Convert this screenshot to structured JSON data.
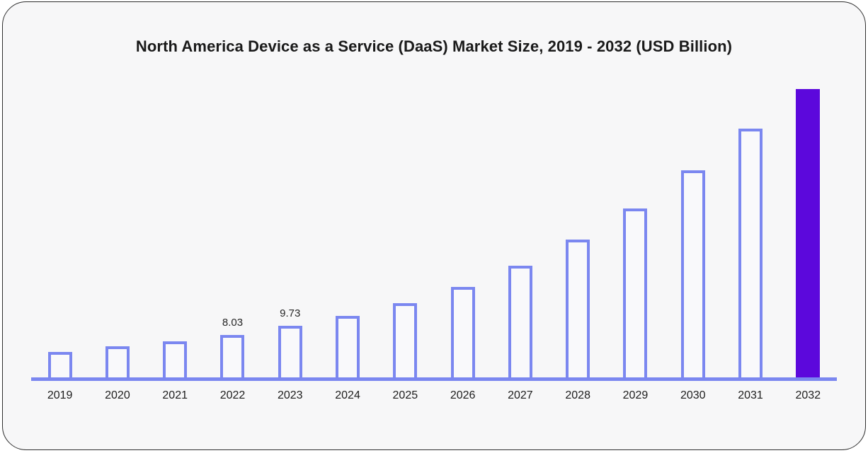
{
  "header": {
    "title": "North America Device as a Service (DaaS) Market Size, 2019 - 2032 (USD Billion)"
  },
  "colors": {
    "card_bg": "#f7f7f8",
    "card_border": "#2e2e2e",
    "bar_outline": "#7b87f0",
    "bar_fill": "#f9f9fb",
    "highlight_bar": "#5c08dc",
    "axis": "#7b87f0"
  },
  "chart_data": {
    "type": "bar",
    "title": "North America Device as a Service (DaaS) Market Size, 2019 - 2032 (USD Billion)",
    "xlabel": "",
    "ylabel": "",
    "ylim": [
      0,
      60
    ],
    "grid": false,
    "legend": false,
    "categories": [
      "2019",
      "2020",
      "2021",
      "2022",
      "2023",
      "2024",
      "2025",
      "2026",
      "2027",
      "2028",
      "2029",
      "2030",
      "2031",
      "2032"
    ],
    "values": [
      4.85,
      5.92,
      6.86,
      8.03,
      9.73,
      11.7,
      14.1,
      17.2,
      21.2,
      26.1,
      32.0,
      39.3,
      47.1,
      54.6
    ],
    "value_labels": {
      "2022": "8.03",
      "2023": "9.73"
    },
    "highlight_category": "2032"
  }
}
